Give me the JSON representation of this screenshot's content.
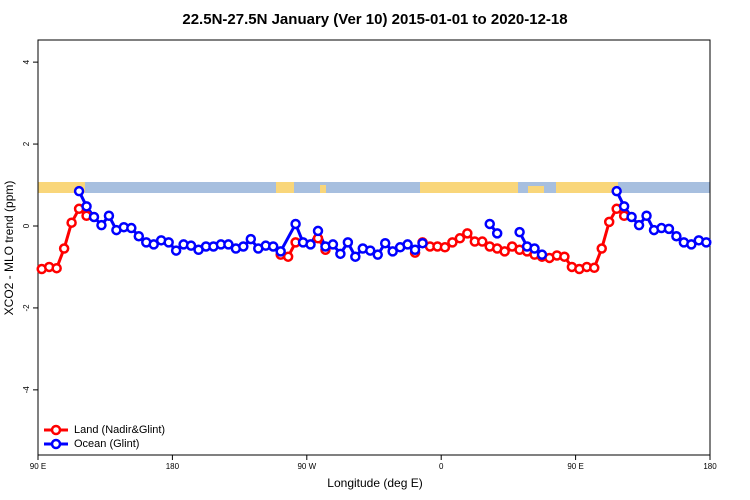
{
  "chart_data": {
    "type": "line",
    "title": "22.5N-27.5N January (Ver 10)   2015-01-01 to 2020-12-18",
    "x_label": "Longitude (deg E)",
    "y_label": "XCO2 - MLO trend (ppm)",
    "xlim": [
      90,
      540
    ],
    "ylim": [
      -5.59,
      4.54
    ],
    "xticks": [
      {
        "value": 90,
        "label": "90 E"
      },
      180,
      {
        "value": 270,
        "label": "90 W"
      },
      {
        "value": 360,
        "label": "0"
      },
      {
        "value": 450,
        "label": "90 E"
      },
      {
        "value": 540,
        "label": "180"
      }
    ],
    "yticks": [
      -4,
      -2,
      0,
      2,
      4
    ],
    "legend": "bottom-left",
    "series": [
      {
        "name": "Land (Nadir&Glint)",
        "color": "#ff0000",
        "x": [
          92.5,
          97.5,
          102.5,
          107.5,
          112.5,
          117.5,
          122.5,
          127.5,
          252.5,
          257.5,
          262.5,
          267.5,
          277.5,
          282.5,
          287.5,
          342.5,
          347.5,
          352.5,
          357.5,
          362.5,
          367.5,
          372.5,
          377.5,
          382.5,
          387.5,
          392.5,
          397.5,
          402.5,
          407.5,
          412.5,
          417.5,
          422.5,
          427.5,
          432.5,
          437.5,
          442.5,
          447.5,
          452.5,
          457.5,
          462.5,
          467.5,
          472.5,
          477.5,
          482.5
        ],
        "values": [
          -1.05,
          -1.0,
          -1.03,
          -0.55,
          0.08,
          0.42,
          0.25,
          null,
          -0.7,
          -0.75,
          -0.4,
          null,
          -0.3,
          -0.58,
          null,
          -0.65,
          -0.4,
          -0.5,
          -0.5,
          -0.52,
          -0.4,
          -0.3,
          -0.18,
          -0.38,
          -0.38,
          -0.5,
          -0.55,
          -0.62,
          -0.5,
          -0.58,
          -0.62,
          -0.7,
          -0.75,
          -0.78,
          -0.72,
          -0.75,
          -1.0,
          -1.05,
          -1.0,
          -1.02,
          -0.55,
          0.1,
          0.42,
          0.25
        ]
      },
      {
        "name": "Ocean (Glint)",
        "color": "#0000ff",
        "x": [
          117.5,
          122.5,
          127.5,
          132.5,
          137.5,
          142.5,
          147.5,
          152.5,
          157.5,
          162.5,
          167.5,
          172.5,
          177.5,
          182.5,
          187.5,
          192.5,
          197.5,
          202.5,
          207.5,
          212.5,
          217.5,
          222.5,
          227.5,
          232.5,
          237.5,
          242.5,
          247.5,
          252.5,
          262.5,
          267.5,
          272.5,
          277.5,
          282.5,
          287.5,
          292.5,
          297.5,
          302.5,
          307.5,
          312.5,
          317.5,
          322.5,
          327.5,
          332.5,
          337.5,
          342.5,
          347.5,
          352.5,
          392.5,
          397.5,
          402.5,
          412.5,
          417.5,
          422.5,
          427.5,
          432.5,
          477.5,
          482.5,
          487.5,
          492.5,
          497.5,
          502.5,
          507.5,
          512.5,
          517.5,
          522.5,
          527.5,
          532.5,
          537.5
        ],
        "values": [
          0.85,
          0.48,
          0.22,
          0.02,
          0.25,
          -0.1,
          -0.03,
          -0.05,
          -0.25,
          -0.4,
          -0.45,
          -0.35,
          -0.4,
          -0.6,
          -0.45,
          -0.48,
          -0.58,
          -0.5,
          -0.5,
          -0.45,
          -0.45,
          -0.55,
          -0.5,
          -0.32,
          -0.55,
          -0.48,
          -0.5,
          -0.62,
          0.05,
          -0.4,
          -0.45,
          -0.12,
          -0.5,
          -0.45,
          -0.68,
          -0.4,
          -0.75,
          -0.55,
          -0.6,
          -0.7,
          -0.42,
          -0.62,
          -0.52,
          -0.45,
          -0.58,
          -0.42,
          null,
          0.05,
          -0.18,
          null,
          -0.15,
          -0.5,
          -0.55,
          -0.7,
          null,
          0.85,
          0.48,
          0.22,
          0.02,
          0.25,
          -0.1,
          -0.05,
          -0.07,
          -0.25,
          -0.4,
          -0.45,
          -0.35,
          -0.4
        ]
      }
    ]
  }
}
